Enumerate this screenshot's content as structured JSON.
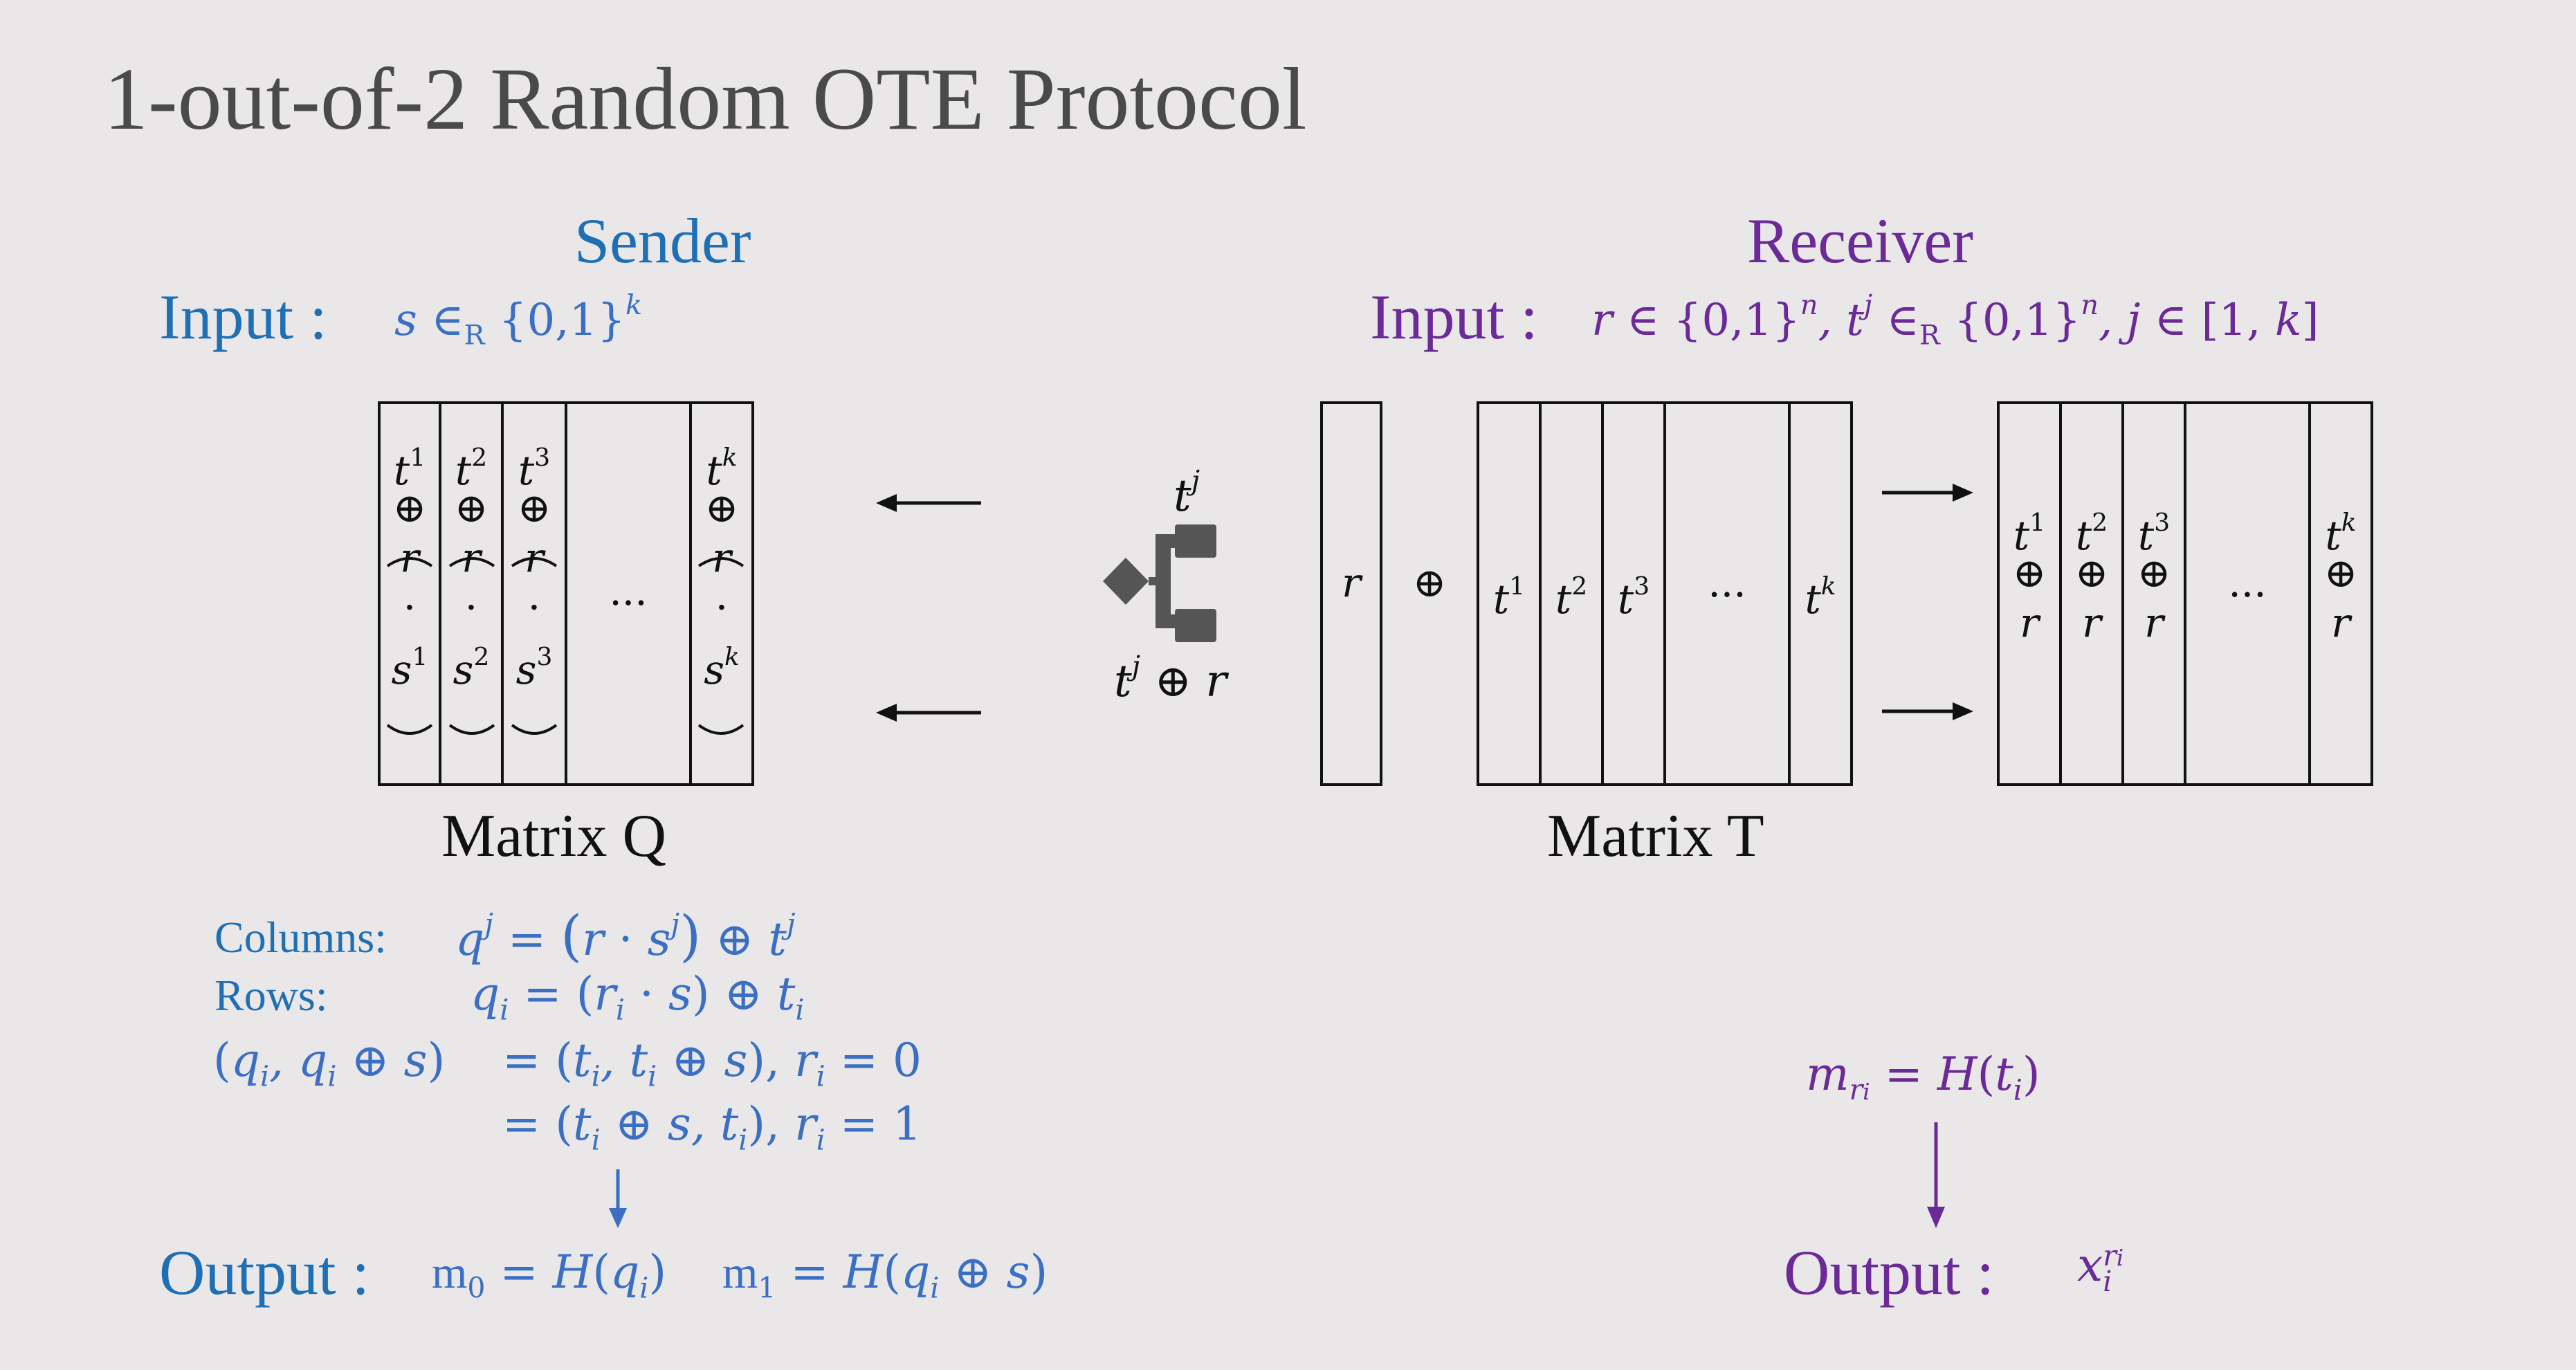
{
  "title": "1-out-of-2 Random OTE Protocol",
  "sender": {
    "heading": "Sender",
    "input_label": "Input :",
    "input_expr": "s ∈R {0,1}k",
    "matrix_label": "Matrix Q",
    "columns_label": "Columns:",
    "columns_expr": "qj = (r · sj) ⊕ tj",
    "rows_label": "Rows:",
    "rows_expr": "qi = (ri · s) ⊕ ti",
    "pair_expr": "(qi, qi ⊕ s)",
    "case0_expr": "= (ti, ti ⊕ s), ri = 0",
    "case1_expr": "= (ti ⊕ s, ti), ri = 1",
    "output_label": "Output :",
    "output_m0": "m0 = H(qi)",
    "output_m1": "m1 = H(qi ⊕ s)"
  },
  "receiver": {
    "heading": "Receiver",
    "input_label": "Input :",
    "input_expr": "r ∈ {0,1}n, tj ∈R {0,1}n, j ∈ [1, k]",
    "matrix_label": "Matrix T",
    "mri_expr": "mri = H(ti)",
    "output_label": "Output :",
    "output_expr": "xiri"
  },
  "center": {
    "top_msg": "tj",
    "bottom_msg": "tj ⊕ r",
    "icon": "ot-switch-icon"
  },
  "matrix_q_columns": [
    "1",
    "2",
    "3",
    "k"
  ],
  "matrix_t_columns": [
    "1",
    "2",
    "3",
    "k"
  ],
  "ellipsis": "...",
  "colors": {
    "sender": "#1f6fb5",
    "sender_math": "#3a6fc4",
    "receiver": "#6b2a97",
    "title": "#4a4a4a"
  }
}
